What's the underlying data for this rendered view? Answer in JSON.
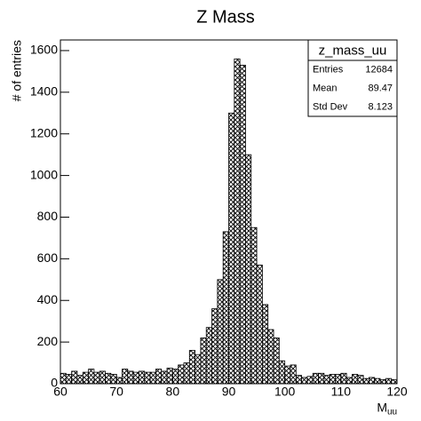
{
  "chart_data": {
    "type": "histogram",
    "title": "Z Mass",
    "x_label": {
      "main": "M",
      "sub": "uu"
    },
    "y_label": "# of entries",
    "bins": [
      60,
      61,
      62,
      63,
      64,
      65,
      66,
      67,
      68,
      69,
      70,
      71,
      72,
      73,
      74,
      75,
      76,
      77,
      78,
      79,
      80,
      81,
      82,
      83,
      84,
      85,
      86,
      87,
      88,
      89,
      90,
      91,
      92,
      93,
      94,
      95,
      96,
      97,
      98,
      99,
      100,
      101,
      102,
      103,
      104,
      105,
      106,
      107,
      108,
      109,
      110,
      111,
      112,
      113,
      114,
      115,
      116,
      117,
      118,
      119,
      120
    ],
    "values": [
      50,
      45,
      60,
      40,
      55,
      70,
      55,
      60,
      50,
      45,
      30,
      70,
      60,
      55,
      60,
      55,
      55,
      70,
      60,
      75,
      70,
      90,
      100,
      160,
      140,
      220,
      270,
      360,
      500,
      730,
      1300,
      1560,
      1530,
      1100,
      750,
      570,
      380,
      260,
      220,
      110,
      85,
      90,
      40,
      30,
      35,
      50,
      50,
      40,
      45,
      45,
      50,
      30,
      45,
      40,
      25,
      30,
      25,
      20,
      25,
      20
    ],
    "color": "#000000",
    "xlim": [
      60,
      120
    ],
    "xticks": [
      60,
      70,
      80,
      90,
      100,
      110,
      120
    ],
    "ylim": [
      0,
      1651
    ],
    "yticks": [
      0,
      200,
      400,
      600,
      800,
      1000,
      1200,
      1400,
      1600
    ],
    "stats": {
      "title": "z_mass_uu",
      "rows": [
        {
          "label": "Entries",
          "value": 12684
        },
        {
          "label": "Mean",
          "value": 89.47
        },
        {
          "label": "Std Dev",
          "value": 8.123
        }
      ]
    }
  }
}
